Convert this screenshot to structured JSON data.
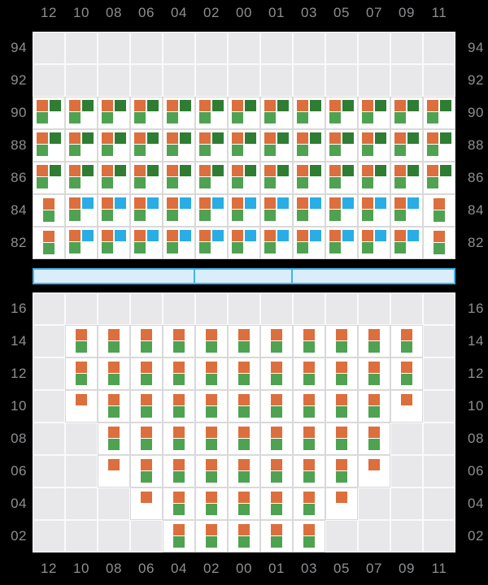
{
  "colors": {
    "orange": "#DC6F3D",
    "dark_green": "#2E7D33",
    "green": "#4FA251",
    "blue": "#29ADE4",
    "bar_fill": "#D9EDFA",
    "bar_border": "#3EB5E9",
    "cell_filled": "#FFFFFF",
    "cell_empty": "#E8E8EA",
    "axis_label": "#8C8E91",
    "background": "#000000"
  },
  "patterns": {
    "odg": [
      {
        "color": "orange",
        "slot": "tl"
      },
      {
        "color": "dark_green",
        "slot": "tr"
      },
      {
        "color": "green",
        "slot": "bl"
      }
    ],
    "obg": [
      {
        "color": "orange",
        "slot": "tl"
      },
      {
        "color": "blue",
        "slot": "tr"
      },
      {
        "color": "green",
        "slot": "bl"
      }
    ],
    "og": [
      {
        "color": "orange",
        "slot": "tc"
      },
      {
        "color": "green",
        "slot": "bc"
      }
    ],
    "o": [
      {
        "color": "orange",
        "slot": "tc"
      }
    ]
  },
  "chart_data": {
    "type": "heatmap",
    "title": "",
    "columns": [
      "12",
      "10",
      "08",
      "06",
      "04",
      "02",
      "00",
      "01",
      "03",
      "05",
      "07",
      "09",
      "11"
    ],
    "cell_glyph_legend": {
      "odg": "orange top-left, dark-green top-right, green bottom-left",
      "obg": "orange top-left, blue top-right, green bottom-left",
      "og": "orange above green, centered",
      "o": "orange only, centered top",
      "": "empty gray cell"
    },
    "panels": [
      {
        "name": "upper",
        "rows": [
          {
            "label": "94",
            "cells": [
              "",
              "",
              "",
              "",
              "",
              "",
              "",
              "",
              "",
              "",
              "",
              "",
              ""
            ]
          },
          {
            "label": "92",
            "cells": [
              "",
              "",
              "",
              "",
              "",
              "",
              "",
              "",
              "",
              "",
              "",
              "",
              ""
            ]
          },
          {
            "label": "90",
            "cells": [
              "odg",
              "odg",
              "odg",
              "odg",
              "odg",
              "odg",
              "odg",
              "odg",
              "odg",
              "odg",
              "odg",
              "odg",
              "odg"
            ]
          },
          {
            "label": "88",
            "cells": [
              "odg",
              "odg",
              "odg",
              "odg",
              "odg",
              "odg",
              "odg",
              "odg",
              "odg",
              "odg",
              "odg",
              "odg",
              "odg"
            ]
          },
          {
            "label": "86",
            "cells": [
              "odg",
              "odg",
              "odg",
              "odg",
              "odg",
              "odg",
              "odg",
              "odg",
              "odg",
              "odg",
              "odg",
              "odg",
              "odg"
            ]
          },
          {
            "label": "84",
            "cells": [
              "og",
              "obg",
              "obg",
              "obg",
              "obg",
              "obg",
              "obg",
              "obg",
              "obg",
              "obg",
              "obg",
              "obg",
              "og"
            ]
          },
          {
            "label": "82",
            "cells": [
              "og",
              "obg",
              "obg",
              "obg",
              "obg",
              "obg",
              "obg",
              "obg",
              "obg",
              "obg",
              "obg",
              "obg",
              "og"
            ]
          }
        ]
      },
      {
        "name": "lower",
        "rows": [
          {
            "label": "16",
            "cells": [
              "",
              "",
              "",
              "",
              "",
              "",
              "",
              "",
              "",
              "",
              "",
              "",
              ""
            ]
          },
          {
            "label": "14",
            "cells": [
              "",
              "og",
              "og",
              "og",
              "og",
              "og",
              "og",
              "og",
              "og",
              "og",
              "og",
              "og",
              ""
            ]
          },
          {
            "label": "12",
            "cells": [
              "",
              "og",
              "og",
              "og",
              "og",
              "og",
              "og",
              "og",
              "og",
              "og",
              "og",
              "og",
              ""
            ]
          },
          {
            "label": "10",
            "cells": [
              "",
              "o",
              "og",
              "og",
              "og",
              "og",
              "og",
              "og",
              "og",
              "og",
              "og",
              "o",
              ""
            ]
          },
          {
            "label": "08",
            "cells": [
              "",
              "",
              "og",
              "og",
              "og",
              "og",
              "og",
              "og",
              "og",
              "og",
              "og",
              "",
              ""
            ]
          },
          {
            "label": "06",
            "cells": [
              "",
              "",
              "o",
              "og",
              "og",
              "og",
              "og",
              "og",
              "og",
              "og",
              "o",
              "",
              ""
            ]
          },
          {
            "label": "04",
            "cells": [
              "",
              "",
              "",
              "o",
              "og",
              "og",
              "og",
              "og",
              "og",
              "o",
              "",
              "",
              ""
            ]
          },
          {
            "label": "02",
            "cells": [
              "",
              "",
              "",
              "",
              "og",
              "og",
              "og",
              "og",
              "og",
              "",
              "",
              "",
              ""
            ]
          }
        ]
      }
    ],
    "divider_bar": {
      "segments_in_columns": [
        5,
        3,
        5
      ]
    }
  }
}
